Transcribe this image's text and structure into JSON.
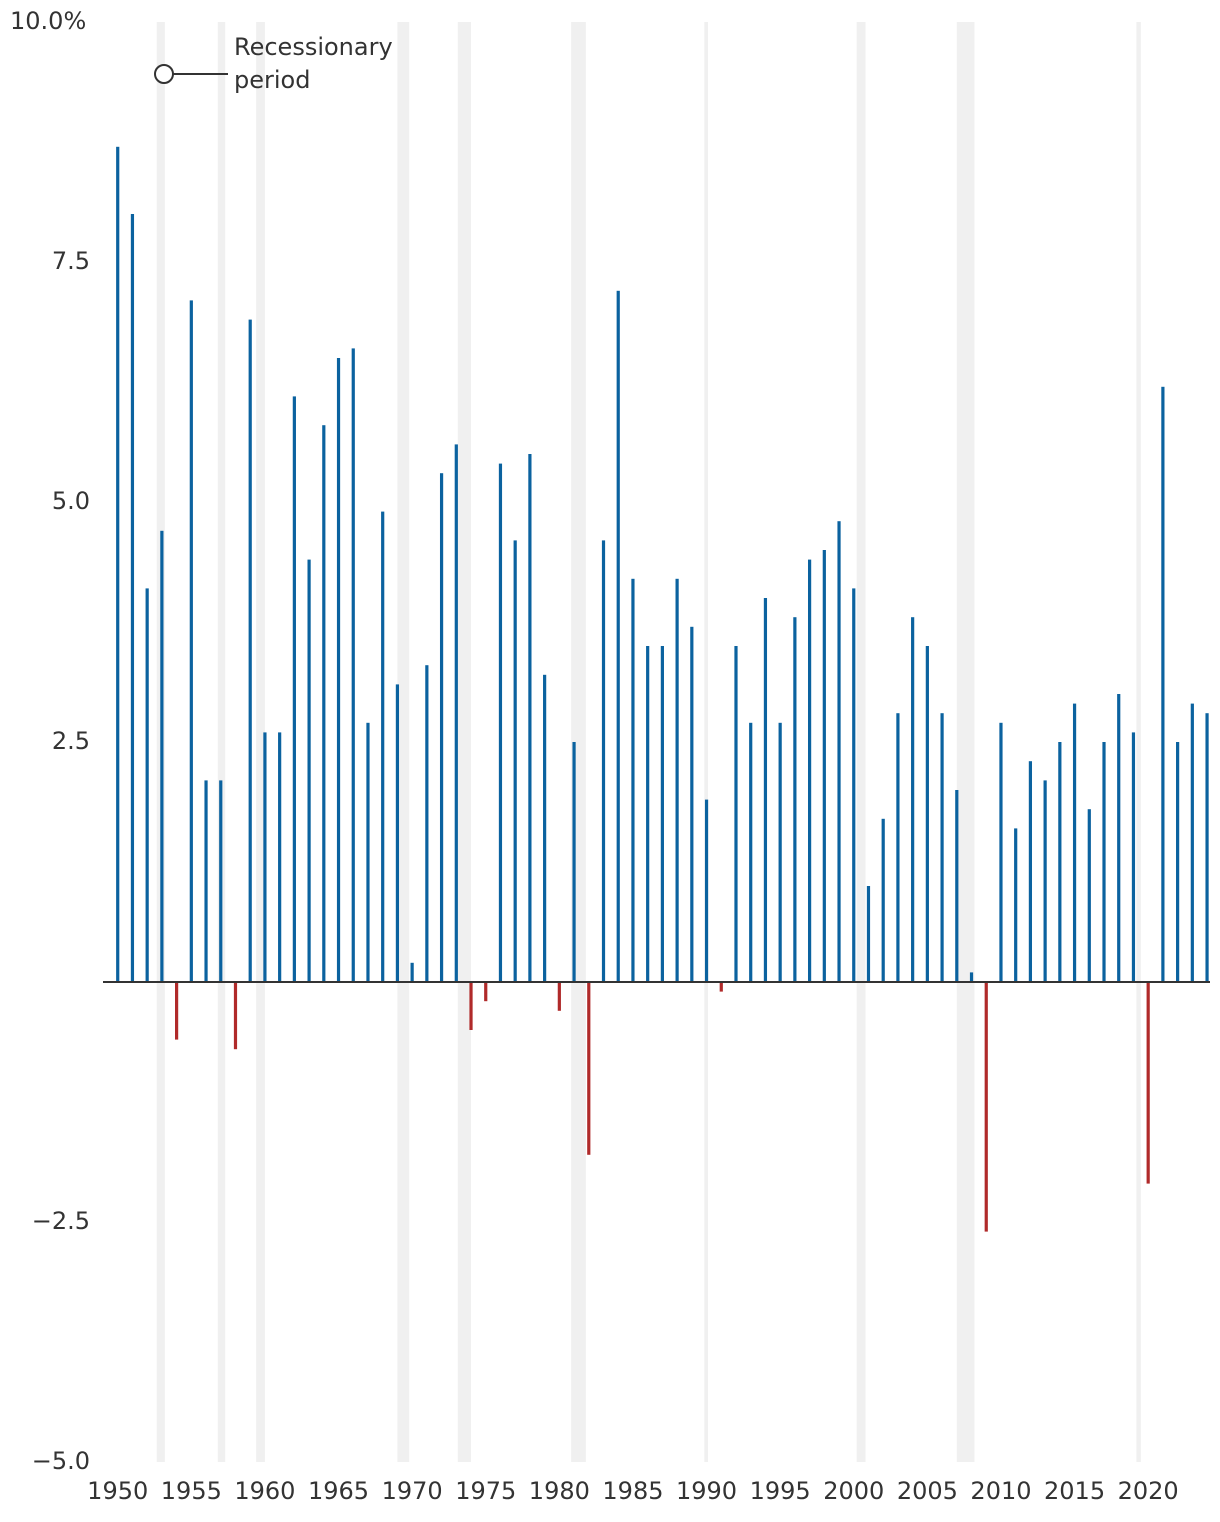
{
  "chart_data": {
    "type": "bar",
    "legend_label": "Recessionary period",
    "x": [
      1950,
      1951,
      1952,
      1953,
      1954,
      1955,
      1956,
      1957,
      1958,
      1959,
      1960,
      1961,
      1962,
      1963,
      1964,
      1965,
      1966,
      1967,
      1968,
      1969,
      1970,
      1971,
      1972,
      1973,
      1974,
      1975,
      1976,
      1977,
      1978,
      1979,
      1980,
      1981,
      1982,
      1983,
      1984,
      1985,
      1986,
      1987,
      1988,
      1989,
      1990,
      1991,
      1992,
      1993,
      1994,
      1995,
      1996,
      1997,
      1998,
      1999,
      2000,
      2001,
      2002,
      2003,
      2004,
      2005,
      2006,
      2007,
      2008,
      2009,
      2010,
      2011,
      2012,
      2013,
      2014,
      2015,
      2016,
      2017,
      2018,
      2019,
      2020,
      2021,
      2022,
      2023,
      2024
    ],
    "values": [
      8.7,
      8.0,
      4.1,
      4.7,
      -0.6,
      7.1,
      2.1,
      2.1,
      -0.7,
      6.9,
      2.6,
      2.6,
      6.1,
      4.4,
      5.8,
      6.5,
      6.6,
      2.7,
      4.9,
      3.1,
      0.2,
      3.3,
      5.3,
      5.6,
      -0.5,
      -0.2,
      5.4,
      4.6,
      5.5,
      3.2,
      -0.3,
      2.5,
      -1.8,
      4.6,
      7.2,
      4.2,
      3.5,
      3.5,
      4.2,
      3.7,
      1.9,
      -0.1,
      3.5,
      2.7,
      4.0,
      2.7,
      3.8,
      4.4,
      4.5,
      4.8,
      4.1,
      1.0,
      1.7,
      2.8,
      3.8,
      3.5,
      2.8,
      2.0,
      0.1,
      -2.6,
      2.7,
      1.6,
      2.3,
      2.1,
      2.5,
      2.9,
      1.8,
      2.5,
      3.0,
      2.6,
      -2.1,
      6.2,
      2.5,
      2.9,
      2.8
    ],
    "color": "#0b629f",
    "negative_color": "#b02a2a",
    "recessions": [
      [
        1952.65,
        1953.2
      ],
      [
        1956.8,
        1957.3
      ],
      [
        1959.4,
        1960.0
      ],
      [
        1969.0,
        1969.8
      ],
      [
        1973.1,
        1974.0
      ],
      [
        1980.8,
        1981.8
      ],
      [
        1989.85,
        1990.1
      ],
      [
        2000.2,
        2000.8
      ],
      [
        2007.0,
        2008.2
      ],
      [
        2019.2,
        2019.5
      ]
    ],
    "recession_color": "#f0f0f0",
    "xlim": [
      1949,
      2024.2
    ],
    "xticks": [
      1950,
      1955,
      1960,
      1965,
      1970,
      1975,
      1980,
      1985,
      1990,
      1995,
      2000,
      2005,
      2010,
      2015,
      2020
    ],
    "ylim": [
      -5,
      10
    ],
    "yticks": [
      {
        "value": -5,
        "label": "−5.0"
      },
      {
        "value": -2.5,
        "label": "−2.5"
      },
      {
        "value": 2.5,
        "label": "2.5"
      },
      {
        "value": 5,
        "label": "5.0"
      },
      {
        "value": 7.5,
        "label": "7.5"
      },
      {
        "value": 10,
        "label": "10.0%"
      }
    ]
  }
}
